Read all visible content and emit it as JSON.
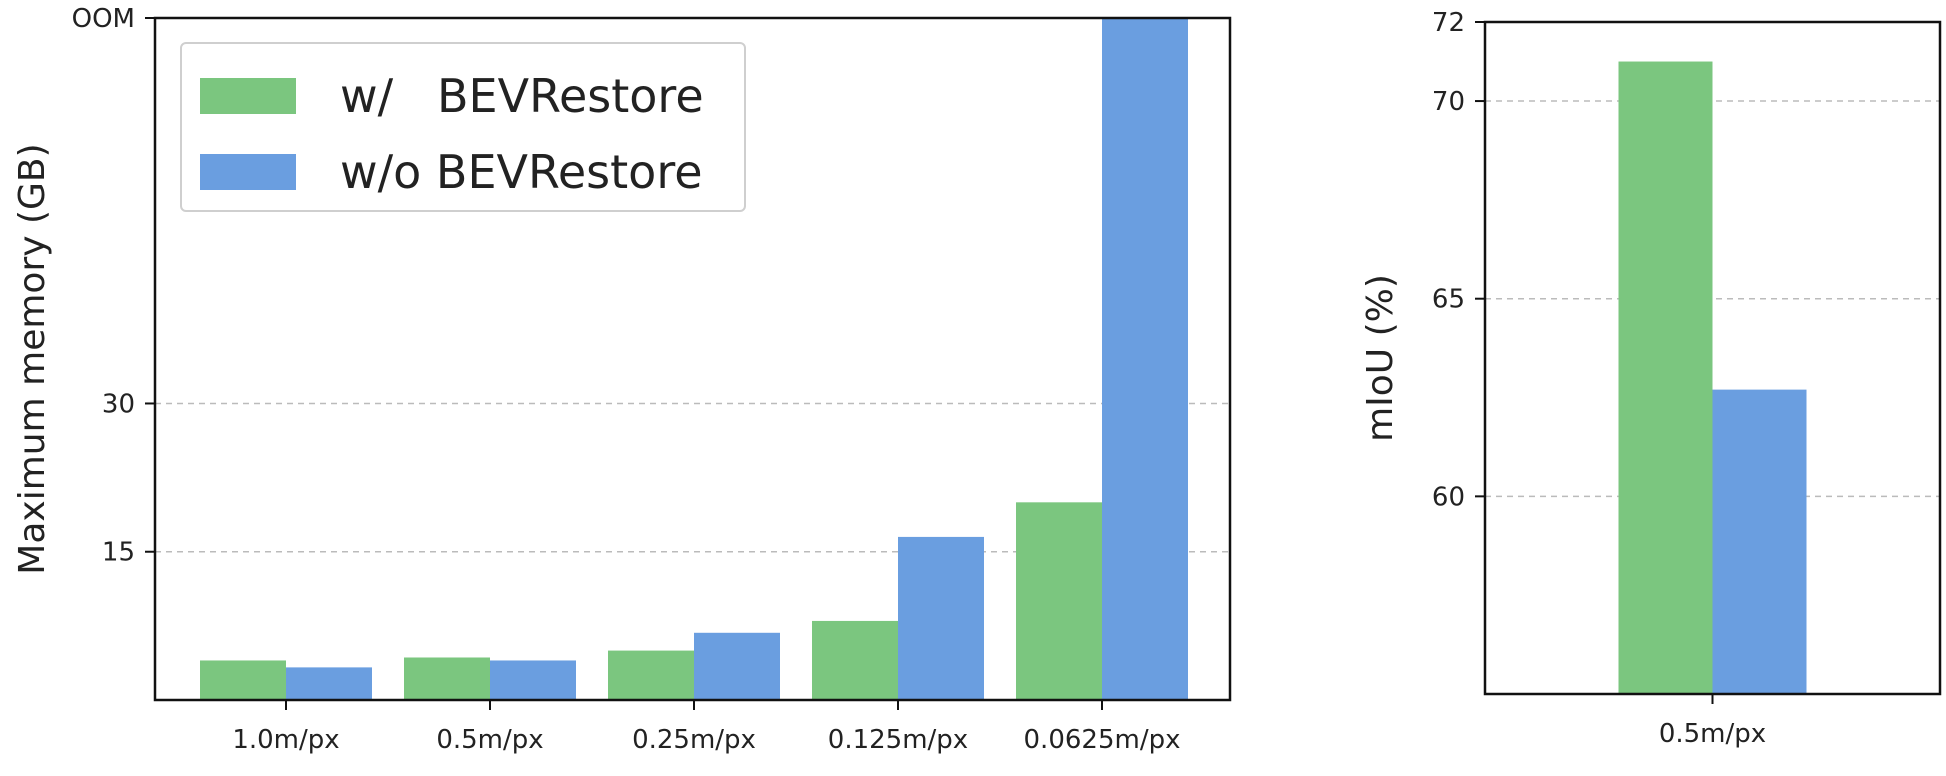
{
  "colors": {
    "with": "#7bc67f",
    "without": "#6a9ee0",
    "grid": "#bbbbbb",
    "axis": "#111111"
  },
  "legend": {
    "with_label": "w/   BEVRestore",
    "without_label": "w/o BEVRestore",
    "placement": "top-left"
  },
  "chart_data": [
    {
      "type": "bar",
      "xlabel": "",
      "ylabel": "Maximum memory (GB)",
      "categories": [
        "1.0m/px",
        "0.5m/px",
        "0.25m/px",
        "0.125m/px",
        "0.0625m/px"
      ],
      "series": [
        {
          "name": "w/   BEVRestore",
          "values": [
            4.0,
            4.3,
            5.0,
            8.0,
            20.0
          ]
        },
        {
          "name": "w/o BEVRestore",
          "values": [
            3.3,
            4.0,
            6.8,
            16.5,
            null
          ]
        }
      ],
      "oom_series_index": 1,
      "oom_category_index": 4,
      "yticks": [
        "15",
        "30",
        "OOM"
      ],
      "ylim": [
        0,
        69
      ],
      "grid": "y-dashed"
    },
    {
      "type": "bar",
      "xlabel": "",
      "ylabel": "mIoU (%)",
      "categories": [
        "0.5m/px"
      ],
      "series": [
        {
          "name": "w/   BEVRestore",
          "values": [
            71.0
          ]
        },
        {
          "name": "w/o BEVRestore",
          "values": [
            62.7
          ]
        }
      ],
      "yticks": [
        "60",
        "65",
        "70",
        "72"
      ],
      "ylim": [
        55,
        72
      ],
      "grid": "y-dashed"
    }
  ]
}
